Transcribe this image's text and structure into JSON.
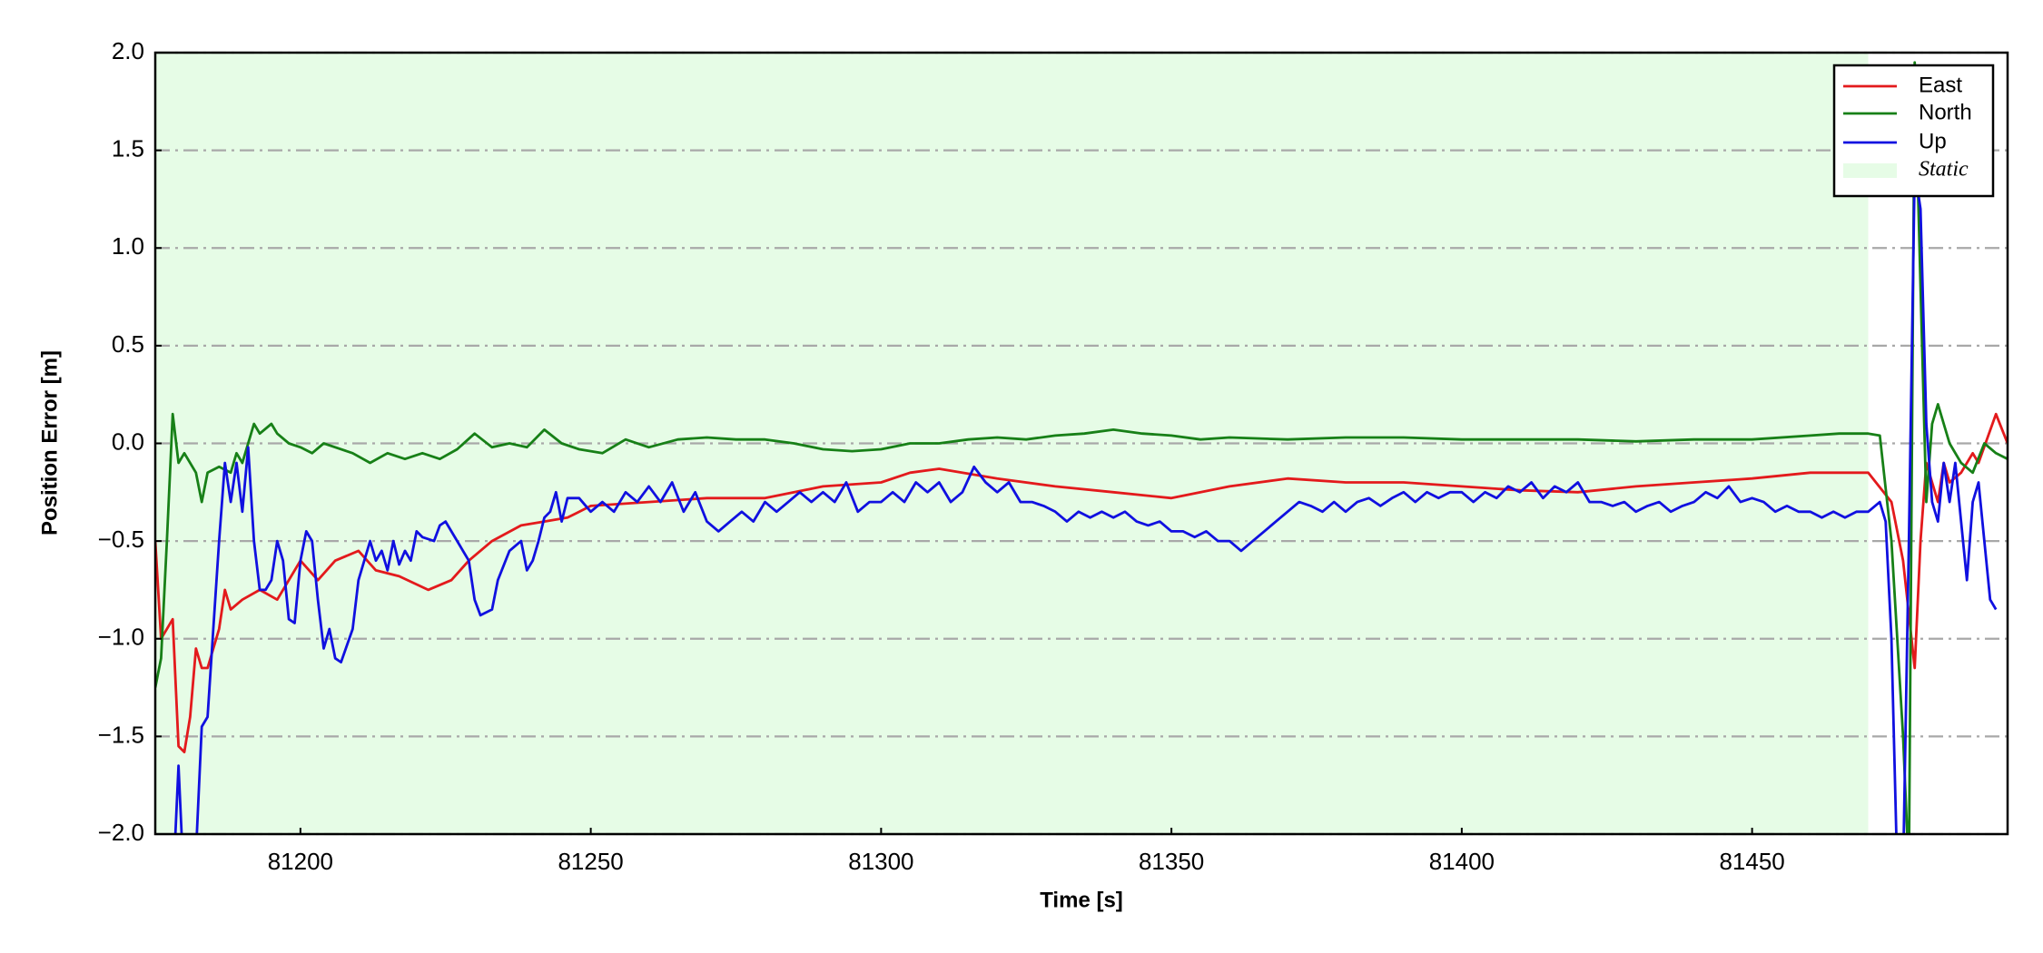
{
  "chart_data": {
    "type": "line",
    "xlabel": "Time [s]",
    "ylabel": "Position Error [m]",
    "xlim": [
      81175,
      81494
    ],
    "ylim": [
      -2.0,
      2.0
    ],
    "xticks": [
      81200,
      81250,
      81300,
      81350,
      81400,
      81450
    ],
    "yticks": [
      {
        "value": -2.0,
        "label": "−2.0"
      },
      {
        "value": -1.5,
        "label": "−1.5"
      },
      {
        "value": -1.0,
        "label": "−1.0"
      },
      {
        "value": -0.5,
        "label": "−0.5"
      },
      {
        "value": 0.0,
        "label": "0.0"
      },
      {
        "value": 0.5,
        "label": "0.5"
      },
      {
        "value": 1.0,
        "label": "1.0"
      },
      {
        "value": 1.5,
        "label": "1.5"
      },
      {
        "value": 2.0,
        "label": "2.0"
      }
    ],
    "grid": true,
    "legend": "upper right",
    "regions": [
      {
        "name": "Static",
        "color": "#e6fce6",
        "range": [
          81175,
          81470
        ]
      }
    ],
    "series": [
      {
        "name": "East",
        "color": "#e31a1c",
        "x": [
          81175,
          81176,
          81178,
          81179,
          81180,
          81181,
          81182,
          81183,
          81184,
          81186,
          81187,
          81188,
          81190,
          81193,
          81196,
          81200,
          81203,
          81206,
          81210,
          81213,
          81217,
          81222,
          81226,
          81229,
          81233,
          81238,
          81242,
          81246,
          81250,
          81260,
          81270,
          81280,
          81290,
          81300,
          81305,
          81310,
          81320,
          81330,
          81340,
          81350,
          81360,
          81370,
          81380,
          81390,
          81400,
          81410,
          81420,
          81430,
          81440,
          81450,
          81460,
          81470,
          81474,
          81476,
          81478,
          81479,
          81480,
          81482,
          81483,
          81484,
          81486,
          81488,
          81489,
          81492,
          81494
        ],
        "values": [
          -0.5,
          -1.0,
          -0.9,
          -1.55,
          -1.58,
          -1.4,
          -1.05,
          -1.15,
          -1.15,
          -0.95,
          -0.75,
          -0.85,
          -0.8,
          -0.75,
          -0.8,
          -0.6,
          -0.7,
          -0.6,
          -0.55,
          -0.65,
          -0.68,
          -0.75,
          -0.7,
          -0.6,
          -0.5,
          -0.42,
          -0.4,
          -0.38,
          -0.32,
          -0.3,
          -0.28,
          -0.28,
          -0.22,
          -0.2,
          -0.15,
          -0.13,
          -0.18,
          -0.22,
          -0.25,
          -0.28,
          -0.22,
          -0.18,
          -0.2,
          -0.2,
          -0.22,
          -0.24,
          -0.25,
          -0.22,
          -0.2,
          -0.18,
          -0.15,
          -0.15,
          -0.3,
          -0.6,
          -1.15,
          -0.5,
          -0.1,
          -0.3,
          -0.1,
          -0.2,
          -0.15,
          -0.05,
          -0.1,
          0.15,
          0
        ]
      },
      {
        "name": "North",
        "color": "#178017",
        "x": [
          81175,
          81176,
          81177,
          81178,
          81179,
          81180,
          81182,
          81183,
          81184,
          81186,
          81188,
          81189,
          81190,
          81192,
          81193,
          81195,
          81196,
          81198,
          81200,
          81202,
          81204,
          81206,
          81209,
          81212,
          81215,
          81218,
          81221,
          81224,
          81227,
          81230,
          81233,
          81236,
          81239,
          81242,
          81245,
          81248,
          81252,
          81256,
          81260,
          81265,
          81270,
          81275,
          81280,
          81285,
          81290,
          81295,
          81300,
          81305,
          81310,
          81315,
          81320,
          81325,
          81330,
          81335,
          81340,
          81345,
          81350,
          81355,
          81360,
          81370,
          81380,
          81390,
          81400,
          81410,
          81420,
          81430,
          81440,
          81450,
          81460,
          81465,
          81470,
          81472,
          81474,
          81476,
          81477,
          81478,
          81479,
          81480,
          81481,
          81482,
          81483,
          81484,
          81486,
          81488,
          81490,
          81492,
          81494
        ],
        "values": [
          -1.25,
          -1.1,
          -0.5,
          0.15,
          -0.1,
          -0.05,
          -0.15,
          -0.3,
          -0.15,
          -0.12,
          -0.15,
          -0.05,
          -0.1,
          0.1,
          0.05,
          0.1,
          0.05,
          0,
          -0.02,
          -0.05,
          0,
          -0.02,
          -0.05,
          -0.1,
          -0.05,
          -0.08,
          -0.05,
          -0.08,
          -0.03,
          0.05,
          -0.02,
          0,
          -0.02,
          0.07,
          0,
          -0.03,
          -0.05,
          0.02,
          -0.02,
          0.02,
          0.03,
          0.02,
          0.02,
          0,
          -0.03,
          -0.04,
          -0.03,
          0,
          0,
          0.02,
          0.03,
          0.02,
          0.04,
          0.05,
          0.07,
          0.05,
          0.04,
          0.02,
          0.03,
          0.02,
          0.03,
          0.03,
          0.02,
          0.02,
          0.02,
          0.01,
          0.02,
          0.02,
          0.04,
          0.05,
          0.05,
          0.04,
          -0.5,
          -1.5,
          -2.2,
          1.95,
          0.8,
          -0.3,
          0.1,
          0.2,
          0.1,
          0,
          -0.1,
          -0.15,
          0,
          -0.05,
          -0.08
        ]
      },
      {
        "name": "Up",
        "color": "#1010e0",
        "x": [
          81178,
          81179,
          81180,
          81182,
          81183,
          81184,
          81185,
          81186,
          81187,
          81188,
          81189,
          81190,
          81191,
          81192,
          81193,
          81194,
          81195,
          81196,
          81197,
          81198,
          81199,
          81200,
          81201,
          81202,
          81203,
          81204,
          81205,
          81206,
          81207,
          81209,
          81210,
          81212,
          81213,
          81214,
          81215,
          81216,
          81217,
          81218,
          81219,
          81220,
          81221,
          81223,
          81224,
          81225,
          81227,
          81229,
          81230,
          81231,
          81233,
          81234,
          81236,
          81238,
          81239,
          81240,
          81241,
          81242,
          81243,
          81244,
          81245,
          81246,
          81248,
          81250,
          81252,
          81254,
          81256,
          81258,
          81260,
          81262,
          81264,
          81266,
          81268,
          81270,
          81272,
          81274,
          81276,
          81278,
          81280,
          81282,
          81284,
          81286,
          81288,
          81290,
          81292,
          81294,
          81296,
          81298,
          81300,
          81302,
          81304,
          81306,
          81308,
          81310,
          81312,
          81314,
          81316,
          81318,
          81320,
          81322,
          81324,
          81326,
          81328,
          81330,
          81332,
          81334,
          81336,
          81338,
          81340,
          81342,
          81344,
          81346,
          81348,
          81350,
          81352,
          81354,
          81356,
          81358,
          81360,
          81362,
          81364,
          81366,
          81368,
          81370,
          81372,
          81374,
          81376,
          81378,
          81380,
          81382,
          81384,
          81386,
          81388,
          81390,
          81392,
          81394,
          81396,
          81398,
          81400,
          81402,
          81404,
          81406,
          81408,
          81410,
          81412,
          81414,
          81416,
          81418,
          81420,
          81422,
          81424,
          81426,
          81428,
          81430,
          81432,
          81434,
          81436,
          81438,
          81440,
          81442,
          81444,
          81446,
          81448,
          81450,
          81452,
          81454,
          81456,
          81458,
          81460,
          81462,
          81464,
          81466,
          81468,
          81470,
          81472,
          81473,
          81474,
          81475,
          81476,
          81477,
          81478,
          81479,
          81480,
          81481,
          81482,
          81483,
          81484,
          81485,
          81486,
          81487,
          81488,
          81489,
          81490,
          81491,
          81492
        ],
        "values": [
          -2.3,
          -1.65,
          -2.3,
          -2.1,
          -1.45,
          -1.4,
          -0.95,
          -0.5,
          -0.1,
          -0.3,
          -0.1,
          -0.35,
          -0.02,
          -0.5,
          -0.75,
          -0.75,
          -0.7,
          -0.5,
          -0.6,
          -0.9,
          -0.92,
          -0.6,
          -0.45,
          -0.5,
          -0.8,
          -1.05,
          -0.95,
          -1.1,
          -1.12,
          -0.95,
          -0.7,
          -0.5,
          -0.6,
          -0.55,
          -0.65,
          -0.5,
          -0.62,
          -0.55,
          -0.6,
          -0.45,
          -0.48,
          -0.5,
          -0.42,
          -0.4,
          -0.5,
          -0.6,
          -0.8,
          -0.88,
          -0.85,
          -0.7,
          -0.55,
          -0.5,
          -0.65,
          -0.6,
          -0.5,
          -0.38,
          -0.35,
          -0.25,
          -0.4,
          -0.28,
          -0.28,
          -0.35,
          -0.3,
          -0.35,
          -0.25,
          -0.3,
          -0.22,
          -0.3,
          -0.2,
          -0.35,
          -0.25,
          -0.4,
          -0.45,
          -0.4,
          -0.35,
          -0.4,
          -0.3,
          -0.35,
          -0.3,
          -0.25,
          -0.3,
          -0.25,
          -0.3,
          -0.2,
          -0.35,
          -0.3,
          -0.3,
          -0.25,
          -0.3,
          -0.2,
          -0.25,
          -0.2,
          -0.3,
          -0.25,
          -0.12,
          -0.2,
          -0.25,
          -0.2,
          -0.3,
          -0.3,
          -0.32,
          -0.35,
          -0.4,
          -0.35,
          -0.38,
          -0.35,
          -0.38,
          -0.35,
          -0.4,
          -0.42,
          -0.4,
          -0.45,
          -0.45,
          -0.48,
          -0.45,
          -0.5,
          -0.5,
          -0.55,
          -0.5,
          -0.45,
          -0.4,
          -0.35,
          -0.3,
          -0.32,
          -0.35,
          -0.3,
          -0.35,
          -0.3,
          -0.28,
          -0.32,
          -0.28,
          -0.25,
          -0.3,
          -0.25,
          -0.28,
          -0.25,
          -0.25,
          -0.3,
          -0.25,
          -0.28,
          -0.22,
          -0.25,
          -0.2,
          -0.28,
          -0.22,
          -0.25,
          -0.2,
          -0.3,
          -0.3,
          -0.32,
          -0.3,
          -0.35,
          -0.32,
          -0.3,
          -0.35,
          -0.32,
          -0.3,
          -0.25,
          -0.28,
          -0.22,
          -0.3,
          -0.28,
          -0.3,
          -0.35,
          -0.32,
          -0.35,
          -0.35,
          -0.38,
          -0.35,
          -0.38,
          -0.35,
          -0.35,
          -0.3,
          -0.4,
          -1.0,
          -2.2,
          -2.2,
          -0.5,
          1.4,
          1.2,
          0.1,
          -0.3,
          -0.4,
          -0.1,
          -0.3,
          -0.1,
          -0.4,
          -0.7,
          -0.3,
          -0.2,
          -0.5,
          -0.8,
          -0.85
        ]
      }
    ]
  }
}
